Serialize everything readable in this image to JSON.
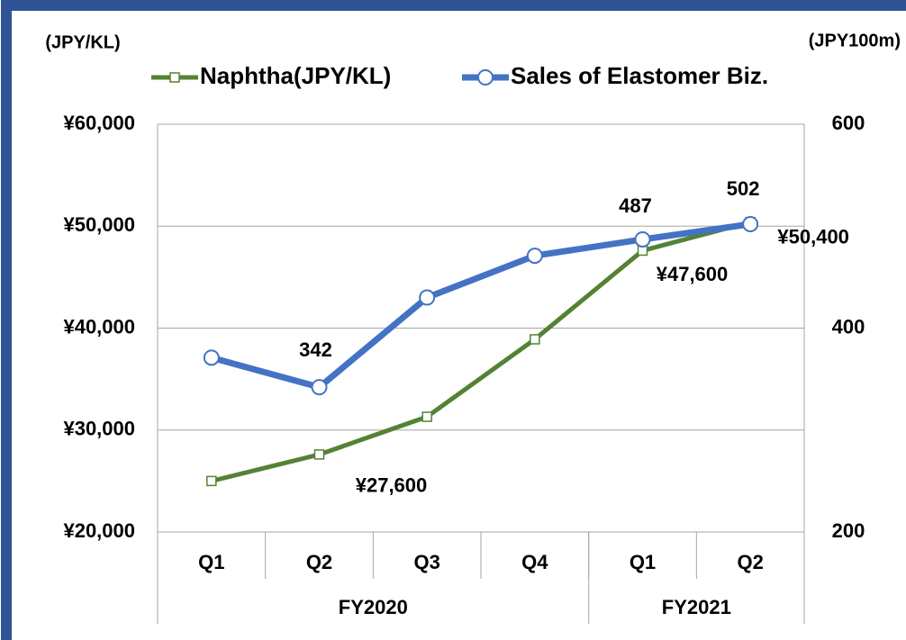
{
  "chart_data": {
    "type": "line",
    "y_axis_label": "(JPY/KL)",
    "y2_axis_label": "(JPY100m)",
    "categories": [
      "Q1",
      "Q2",
      "Q3",
      "Q4",
      "Q1",
      "Q2"
    ],
    "category_groups": [
      {
        "label": "FY2020",
        "count": 4
      },
      {
        "label": "FY2021",
        "count": 2
      }
    ],
    "series": [
      {
        "name": "Naphtha(JPY/KL)",
        "color": "#548235",
        "marker": "square",
        "axis": "y",
        "values": [
          25000,
          27600,
          31300,
          38900,
          47600,
          50400
        ],
        "value_labels": [
          null,
          "¥27,600",
          null,
          null,
          "¥47,600",
          "¥50,400"
        ]
      },
      {
        "name": "Sales of Elastomer Biz.",
        "color": "#4472c4",
        "marker": "circle",
        "axis": "y2",
        "values": [
          371,
          342,
          430,
          471,
          487,
          502
        ],
        "value_labels": [
          null,
          "342",
          null,
          null,
          "487",
          "502"
        ]
      }
    ],
    "ylim": [
      20000,
      60000
    ],
    "yticks": [
      {
        "value": 20000,
        "label": "¥20,000"
      },
      {
        "value": 30000,
        "label": "¥30,000"
      },
      {
        "value": 40000,
        "label": "¥40,000"
      },
      {
        "value": 50000,
        "label": "¥50,000"
      },
      {
        "value": 60000,
        "label": "¥60,000"
      }
    ],
    "y2lim": [
      200,
      600
    ],
    "y2ticks": [
      200,
      400,
      600
    ],
    "grid": true,
    "legend": "top"
  }
}
